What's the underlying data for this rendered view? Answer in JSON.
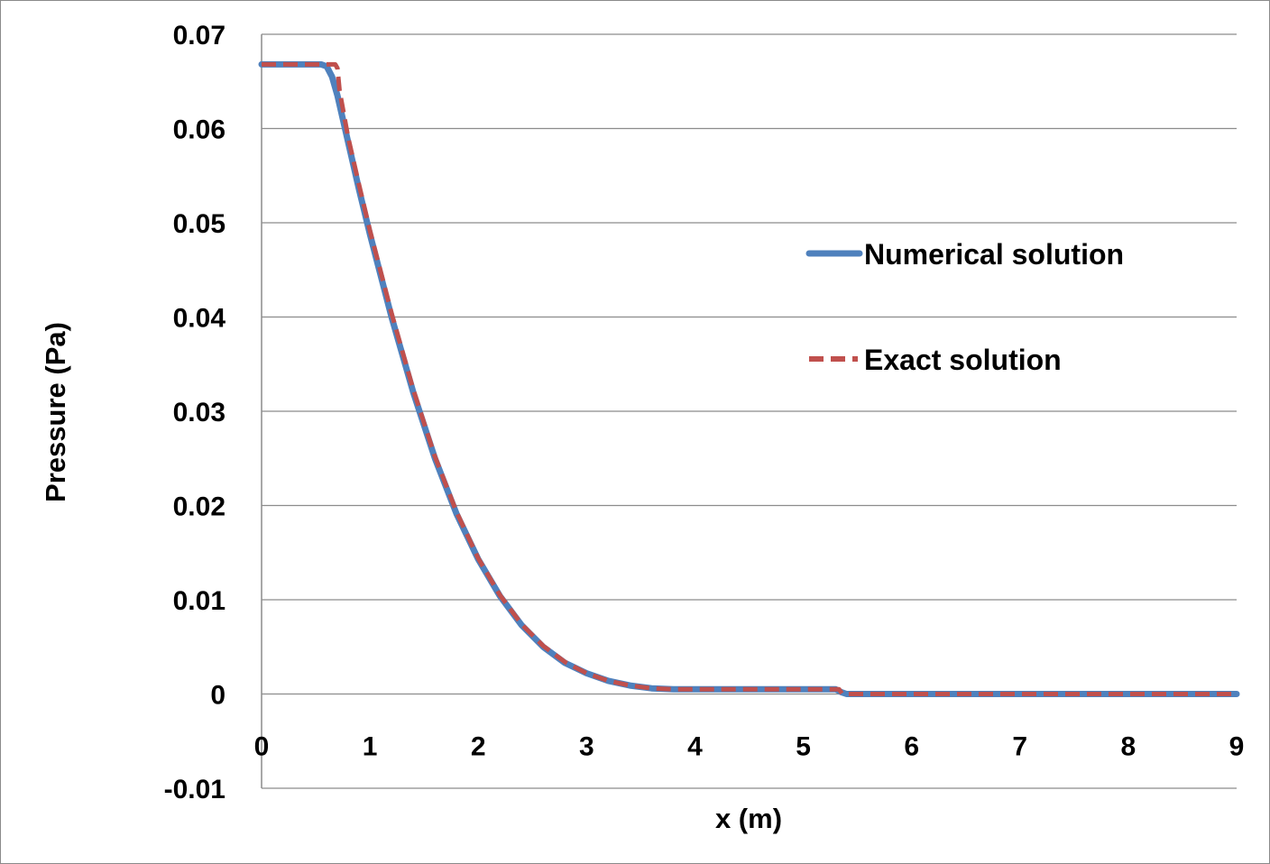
{
  "chart_data": {
    "type": "line",
    "title": "",
    "xlabel": "x (m)",
    "ylabel": "Pressure (Pa)",
    "xlim": [
      0,
      9
    ],
    "ylim": [
      -0.01,
      0.07
    ],
    "x_ticks": [
      "0",
      "1",
      "2",
      "3",
      "4",
      "5",
      "6",
      "7",
      "8",
      "9"
    ],
    "y_ticks": [
      "-0.01",
      "0",
      "0.01",
      "0.02",
      "0.03",
      "0.04",
      "0.05",
      "0.06",
      "0.07"
    ],
    "grid": "horizontal",
    "legend_position": "right",
    "series": [
      {
        "name": "Numerical solution",
        "color": "#4f81bd",
        "style": "solid",
        "x": [
          0,
          0.55,
          0.6,
          0.65,
          0.7,
          0.8,
          0.9,
          1.0,
          1.2,
          1.4,
          1.6,
          1.8,
          2.0,
          2.2,
          2.4,
          2.6,
          2.8,
          3.0,
          3.2,
          3.4,
          3.6,
          3.8,
          4.0,
          4.5,
          5.0,
          5.3,
          5.35,
          5.4,
          6,
          7,
          8,
          9
        ],
        "y": [
          0.0668,
          0.0668,
          0.0666,
          0.0655,
          0.0635,
          0.0585,
          0.0535,
          0.0488,
          0.04,
          0.032,
          0.025,
          0.0191,
          0.0143,
          0.0104,
          0.0073,
          0.005,
          0.0033,
          0.0022,
          0.0014,
          0.0009,
          0.0006,
          0.0005,
          0.0005,
          0.0005,
          0.0005,
          0.0005,
          0.0002,
          0.0,
          0.0,
          0.0,
          0.0,
          0.0
        ]
      },
      {
        "name": "Exact solution",
        "color": "#c0504d",
        "style": "dashed",
        "x": [
          0,
          0.62,
          0.66,
          0.68,
          0.7,
          0.72,
          0.8,
          0.9,
          1.0,
          1.2,
          1.4,
          1.6,
          1.8,
          2.0,
          2.2,
          2.4,
          2.6,
          2.8,
          3.0,
          3.2,
          3.4,
          3.6,
          3.8,
          4.0,
          4.5,
          5.0,
          5.33,
          5.36,
          6,
          7,
          8,
          9
        ],
        "y": [
          0.0668,
          0.0668,
          0.0668,
          0.0668,
          0.0664,
          0.064,
          0.059,
          0.054,
          0.0492,
          0.0404,
          0.0323,
          0.0252,
          0.0193,
          0.0144,
          0.0105,
          0.0074,
          0.0051,
          0.0034,
          0.0022,
          0.0014,
          0.0009,
          0.0006,
          0.0005,
          0.0005,
          0.0005,
          0.0005,
          0.0005,
          0.0,
          0.0,
          0.0,
          0.0,
          0.0
        ]
      }
    ]
  }
}
